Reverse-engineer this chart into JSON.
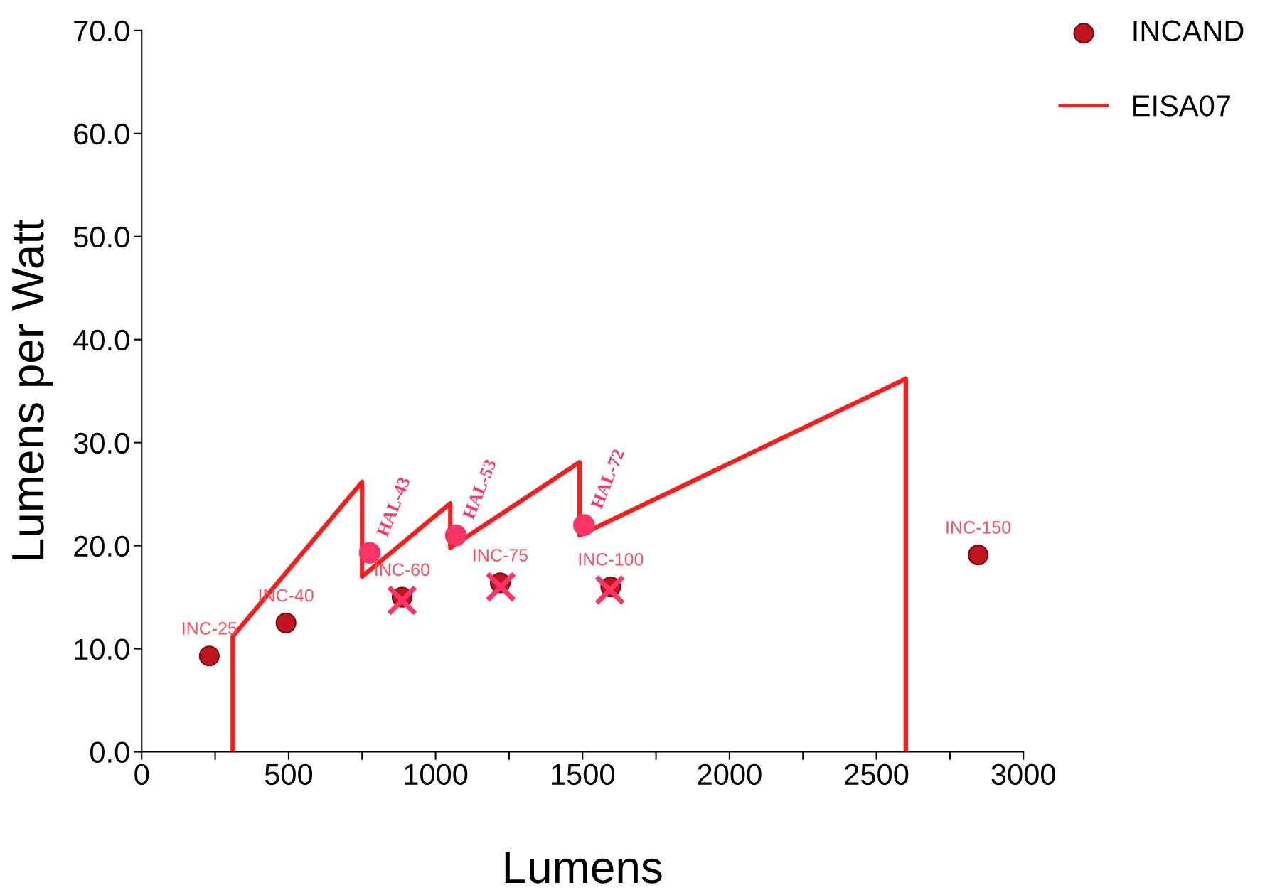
{
  "chart_data": {
    "type": "scatter",
    "xlabel": "Lumens",
    "ylabel": "Lumens per Watt",
    "xlim": [
      0,
      3000
    ],
    "ylim": [
      0,
      70
    ],
    "xticks": [
      0,
      {
        "value": 250,
        "label": null
      },
      500,
      {
        "value": 750,
        "label": null
      },
      1000,
      {
        "value": 1250,
        "label": null
      },
      1500,
      {
        "value": 1750,
        "label": null
      },
      2000,
      {
        "value": 2250,
        "label": null
      },
      2500,
      {
        "value": 2750,
        "label": null
      },
      3000
    ],
    "yticks": [
      {
        "value": 0,
        "label": "0.0"
      },
      {
        "value": 10,
        "label": "10.0"
      },
      {
        "value": 20,
        "label": "20.0"
      },
      {
        "value": 30,
        "label": "30.0"
      },
      {
        "value": 40,
        "label": "40.0"
      },
      {
        "value": 50,
        "label": "50.0"
      },
      {
        "value": 60,
        "label": "60.0"
      },
      {
        "value": 70,
        "label": "70.0"
      }
    ],
    "grid": false,
    "legend": "top right",
    "series": [
      {
        "name": "INCAND",
        "marker": "circle",
        "color": "#c0141e",
        "x": [
          230,
          491,
          886,
          1220,
          1596,
          2846
        ],
        "values": [
          9.3,
          12.5,
          15.0,
          16.4,
          16.0,
          19.1
        ],
        "value_labels": [
          "INC-25",
          "INC-40",
          "INC-60",
          "INC-75",
          "INC-100",
          "INC-150"
        ]
      },
      {
        "name": "EISA07",
        "type": "line",
        "marker": "none",
        "color": "#ff1a1a",
        "x": [
          310,
          310,
          750,
          750,
          1050,
          1050,
          1490,
          1490,
          2600,
          2600
        ],
        "values": [
          0,
          11.2,
          26.2,
          17.0,
          24.1,
          19.8,
          28.1,
          21.0,
          36.2,
          0
        ]
      },
      {
        "marker": "circle",
        "color": "#ff3366",
        "x": [
          776,
          1069,
          1505
        ],
        "values": [
          19.3,
          21.0,
          22.0
        ],
        "value_labels": [
          "HAL-43",
          "HAL-53",
          "HAL-72"
        ]
      },
      {
        "marker": "cross",
        "color": "#ff3366",
        "x": [
          886,
          1222,
          1593
        ],
        "values": [
          14.7,
          16.0,
          15.7
        ]
      }
    ]
  }
}
